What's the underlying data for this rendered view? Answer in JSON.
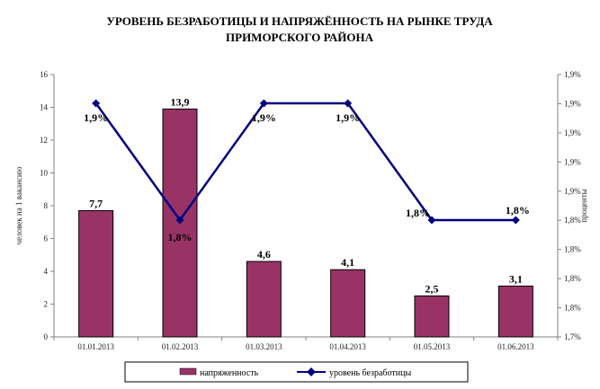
{
  "chart_data": {
    "type": "bar+line",
    "title_lines": [
      "УРОВЕНЬ БЕЗРАБОТИЦЫ И НАПРЯЖЁННОСТЬ НА РЫНКЕ ТРУДА",
      "ПРИМОРСКОГО РАЙОНА"
    ],
    "categories": [
      "01.01.2013",
      "01.02.2013",
      "01.03.2013",
      "01.04.2013",
      "01.05.2013",
      "01.06.2013"
    ],
    "ylabel": "человек на 1 вакансию",
    "y2label": "проценты",
    "ylim": [
      0,
      16
    ],
    "y_ticks": [
      "0",
      "2",
      "4",
      "6",
      "8",
      "10",
      "12",
      "14",
      "16"
    ],
    "y2_ticks": [
      "1,7%",
      "1,8%",
      "1,8%",
      "1,8%",
      "1,8%",
      "1,9%",
      "1,9%",
      "1,9%",
      "1,9%",
      "1,9%"
    ],
    "bars": {
      "name": "напряженность",
      "values": [
        7.7,
        13.9,
        4.6,
        4.1,
        2.5,
        3.1
      ],
      "labels": [
        "7,7",
        "13,9",
        "4,6",
        "4,1",
        "2,5",
        "3,1"
      ],
      "color": "#993366"
    },
    "line": {
      "name": "уровень безработицы",
      "values": [
        1.9,
        1.8,
        1.9,
        1.9,
        1.8,
        1.8
      ],
      "labels": [
        "1,9%",
        "1,8%",
        "1,9%",
        "1,9%",
        "1,8%",
        "1,8%"
      ],
      "color": "#000080"
    },
    "legend_position": "bottom"
  }
}
